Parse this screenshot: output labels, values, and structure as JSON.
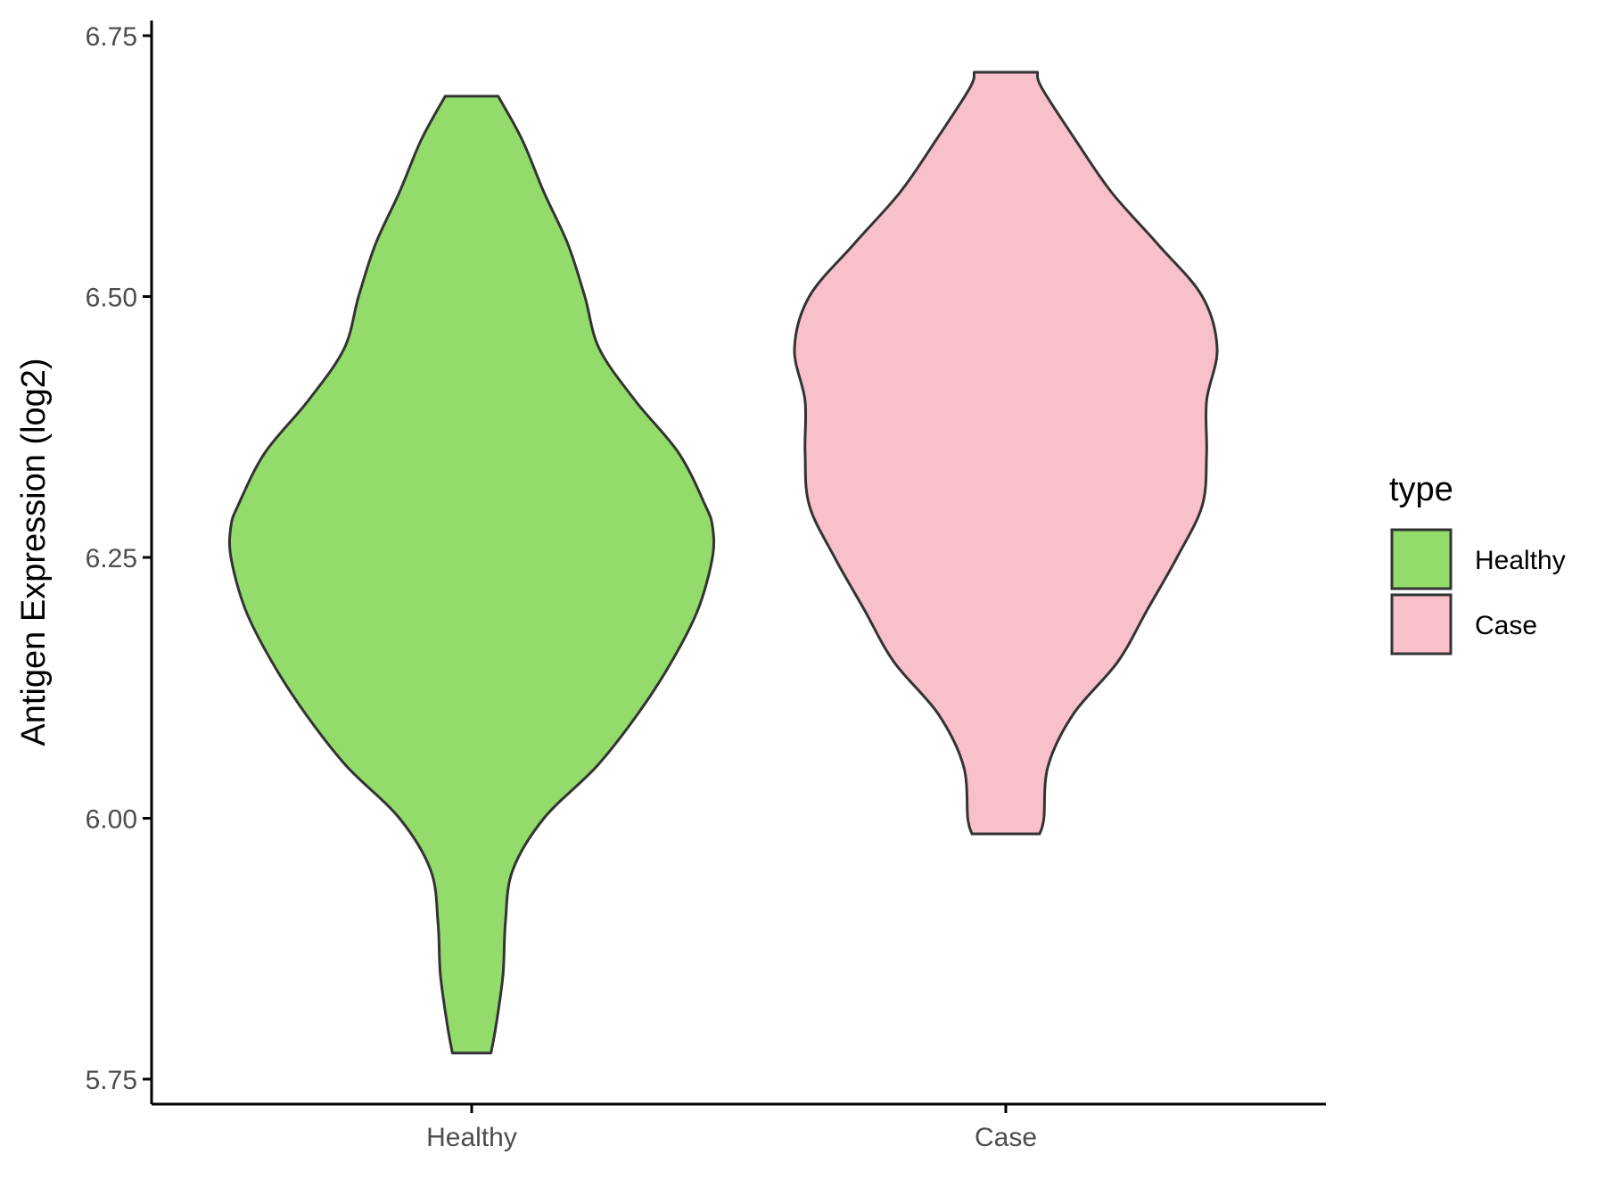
{
  "chart_data": {
    "type": "violin",
    "title": "",
    "xlabel": "",
    "ylabel": "Antigen Expression (log2)",
    "ylim": [
      5.72,
      6.765
    ],
    "yticks": [
      "5.75",
      "6.00",
      "6.25",
      "6.50",
      "6.75"
    ],
    "ytick_values": [
      5.75,
      6.0,
      6.25,
      6.5,
      6.75
    ],
    "categories": [
      "Healthy",
      "Case"
    ],
    "legend": {
      "title": "type",
      "placement": "right",
      "entries": [
        "Healthy",
        "Case"
      ]
    },
    "grid": false,
    "series": [
      {
        "name": "Healthy",
        "color": "#93dc6b",
        "min": 5.775,
        "max": 6.692,
        "density_profile": [
          [
            5.775,
            0.08
          ],
          [
            5.8,
            0.1
          ],
          [
            5.85,
            0.13
          ],
          [
            5.9,
            0.14
          ],
          [
            5.95,
            0.17
          ],
          [
            6.0,
            0.3
          ],
          [
            6.05,
            0.52
          ],
          [
            6.1,
            0.69
          ],
          [
            6.15,
            0.83
          ],
          [
            6.2,
            0.94
          ],
          [
            6.25,
            1.0
          ],
          [
            6.28,
            1.0
          ],
          [
            6.3,
            0.97
          ],
          [
            6.35,
            0.86
          ],
          [
            6.4,
            0.68
          ],
          [
            6.45,
            0.53
          ],
          [
            6.5,
            0.47
          ],
          [
            6.55,
            0.4
          ],
          [
            6.6,
            0.3
          ],
          [
            6.65,
            0.21
          ],
          [
            6.692,
            0.11
          ]
        ]
      },
      {
        "name": "Case",
        "color": "#f7c0cb",
        "min": 5.985,
        "max": 6.715,
        "density_profile": [
          [
            5.985,
            0.16
          ],
          [
            6.0,
            0.18
          ],
          [
            6.05,
            0.2
          ],
          [
            6.1,
            0.32
          ],
          [
            6.15,
            0.53
          ],
          [
            6.2,
            0.67
          ],
          [
            6.25,
            0.81
          ],
          [
            6.3,
            0.93
          ],
          [
            6.35,
            0.95
          ],
          [
            6.4,
            0.95
          ],
          [
            6.45,
            1.0
          ],
          [
            6.5,
            0.93
          ],
          [
            6.55,
            0.72
          ],
          [
            6.6,
            0.5
          ],
          [
            6.65,
            0.33
          ],
          [
            6.7,
            0.17
          ],
          [
            6.715,
            0.15
          ]
        ]
      }
    ]
  }
}
